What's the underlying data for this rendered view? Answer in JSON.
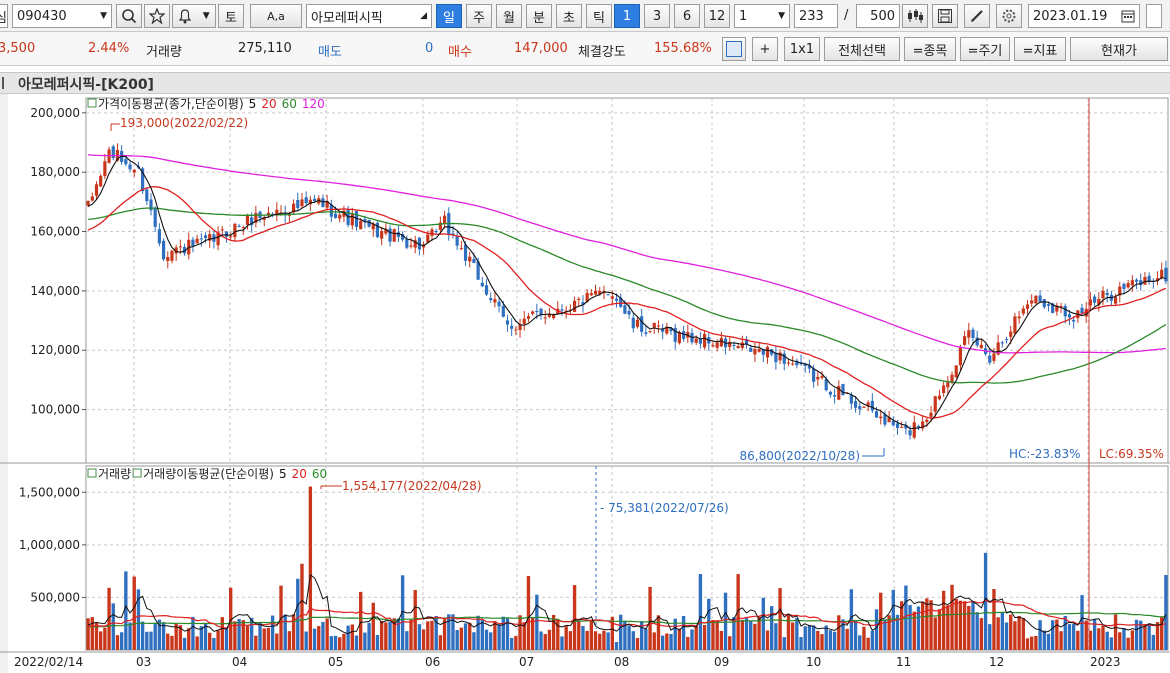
{
  "toolbar": {
    "cut_left_glyph": "심",
    "stock_code": "090430",
    "search_icon": "search-icon",
    "favorite_icon": "star-icon",
    "alarm_icon": "bell-icon",
    "to_label": "토",
    "font_label": "A,a",
    "stock_name": "아모레퍼시픽",
    "period_tabs": [
      "일",
      "주",
      "월",
      "분",
      "초",
      "틱"
    ],
    "active_tab": "일",
    "num_buttons": [
      "1",
      "3",
      "6",
      "12"
    ],
    "active_num": "1",
    "unit_select": "1",
    "count_value": "233",
    "slash": "/",
    "total_value": "500",
    "date_value": "2023.01.19"
  },
  "quote": {
    "change_value": "3,500",
    "change_rate": "2.44%",
    "volume_label": "거래량",
    "volume_value": "275,110",
    "ask_label": "매도",
    "ask_value": "0",
    "bid_label": "매수",
    "bid_value": "147,000",
    "strength_label": "체결강도",
    "strength_value": "155.68%",
    "plus_label": "+",
    "ratio_label": "1x1",
    "select_all_label": "전체선택",
    "stock_btn_label": "=종목",
    "period_btn_label": "=주기",
    "indicator_btn_label": "=지표",
    "current_price_label": "현재가"
  },
  "chart_title": "아모레퍼시픽-[K200]",
  "colors": {
    "up": "#c8361b",
    "down": "#2f6fc0",
    "ma5": "#111111",
    "ma20": "#e02020",
    "ma60": "#2a8a2a",
    "ma120": "#e020e0"
  },
  "chart_data": [
    {
      "type": "candlestick",
      "legend": {
        "name": "가격이동평균(종가,단순이평)",
        "periods": [
          "5",
          "20",
          "60",
          "120"
        ]
      },
      "yticks": [
        100000,
        120000,
        140000,
        160000,
        180000,
        200000
      ],
      "ytick_labels": [
        "100,000",
        "120,000",
        "140,000",
        "160,000",
        "180,000",
        "200,000"
      ],
      "ylim": [
        82000,
        205000
      ],
      "max_label": "193,000(2022/02/22)",
      "min_label": "86,800(2022/10/28)",
      "hc_label": "HC:-23.83%",
      "lc_label": "LC:69.35%",
      "anchors": [
        [
          0,
          168000
        ],
        [
          5,
          187000
        ],
        [
          12,
          180000
        ],
        [
          18,
          153000
        ],
        [
          28,
          156000
        ],
        [
          40,
          165000
        ],
        [
          55,
          170000
        ],
        [
          65,
          162000
        ],
        [
          80,
          155000
        ],
        [
          85,
          163000
        ],
        [
          95,
          140000
        ],
        [
          100,
          128000
        ],
        [
          110,
          133000
        ],
        [
          125,
          140000
        ],
        [
          130,
          128000
        ],
        [
          145,
          124000
        ],
        [
          165,
          118000
        ],
        [
          180,
          105000
        ],
        [
          195,
          92000
        ],
        [
          200,
          98000
        ],
        [
          210,
          125000
        ],
        [
          215,
          118000
        ],
        [
          225,
          138000
        ],
        [
          235,
          132000
        ],
        [
          245,
          140000
        ],
        [
          255,
          145000
        ]
      ]
    },
    {
      "type": "volume",
      "legend": {
        "name": "거래량",
        "ma_name": "거래량이동평균(단순이평)",
        "periods": [
          "5",
          "20",
          "60"
        ]
      },
      "yticks": [
        500000,
        1000000,
        1500000
      ],
      "ytick_labels": [
        "500,000",
        "1,000,000",
        "1,500,000"
      ],
      "ylim": [
        0,
        1750000
      ],
      "max_label": "1,554,177(2022/04/28)",
      "min_label": "75,381(2022/07/26)"
    }
  ],
  "x_axis_labels": [
    "2022/02/14",
    "03",
    "04",
    "05",
    "06",
    "07",
    "08",
    "09",
    "10",
    "11",
    "12",
    "2023"
  ]
}
